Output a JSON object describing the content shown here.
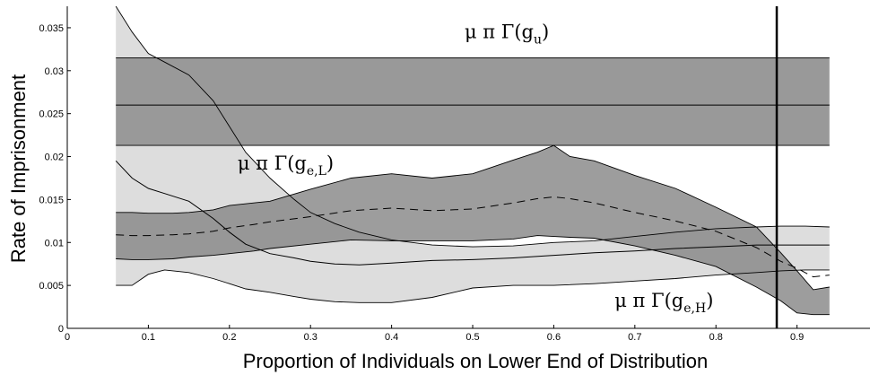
{
  "chart_data": {
    "type": "area",
    "xlabel": "Proportion of Individuals on Lower End of Distribution",
    "ylabel": "Rate of Imprisonment",
    "xlim": [
      0,
      0.99
    ],
    "ylim": [
      0,
      0.0375
    ],
    "x_ticks": [
      "0",
      "0.1",
      "0.2",
      "0.3",
      "0.4",
      "0.5",
      "0.6",
      "0.7",
      "0.8",
      "0.9"
    ],
    "x_tick_values": [
      0,
      0.1,
      0.2,
      0.3,
      0.4,
      0.5,
      0.6,
      0.7,
      0.8,
      0.9
    ],
    "y_ticks": [
      "0",
      "0.005",
      "0.01",
      "0.015",
      "0.02",
      "0.025",
      "0.03",
      "0.035"
    ],
    "y_tick_values": [
      0,
      0.005,
      0.01,
      0.015,
      0.02,
      0.025,
      0.03,
      0.035
    ],
    "grid": false,
    "annotations": [
      {
        "name": "g_u",
        "main": "μ π Γ(g",
        "sub": "u",
        "close": ")",
        "x": 0.49,
        "y": 0.0338
      },
      {
        "name": "g_eL",
        "main": "μ π Γ(g",
        "sub": "e,L",
        "close": ")",
        "x": 0.21,
        "y": 0.0185
      },
      {
        "name": "g_eH",
        "main": "μ π Γ(g",
        "sub": "e,H",
        "close": ")",
        "x": 0.675,
        "y": 0.0025
      }
    ],
    "vertical_line": {
      "x": 0.875
    },
    "series": [
      {
        "name": "g_u",
        "x": [
          0.06,
          0.94
        ],
        "lower": [
          0.0213,
          0.0213
        ],
        "center": [
          0.026,
          0.026
        ],
        "upper": [
          0.0315,
          0.0315
        ],
        "band_color": "#999999"
      },
      {
        "name": "g_eL",
        "x": [
          0.06,
          0.08,
          0.1,
          0.12,
          0.15,
          0.18,
          0.2,
          0.22,
          0.25,
          0.28,
          0.3,
          0.33,
          0.36,
          0.4,
          0.45,
          0.5,
          0.55,
          0.6,
          0.65,
          0.7,
          0.75,
          0.8,
          0.85,
          0.88,
          0.91,
          0.94
        ],
        "upper": [
          0.0375,
          0.0345,
          0.032,
          0.031,
          0.0295,
          0.0265,
          0.0235,
          0.0205,
          0.0175,
          0.015,
          0.0135,
          0.0122,
          0.0112,
          0.0103,
          0.0097,
          0.0095,
          0.0096,
          0.01,
          0.0102,
          0.0107,
          0.0112,
          0.0116,
          0.0118,
          0.0119,
          0.0119,
          0.0118
        ],
        "center": [
          0.0195,
          0.0175,
          0.0163,
          0.0157,
          0.0148,
          0.0128,
          0.0112,
          0.0098,
          0.0087,
          0.0082,
          0.0078,
          0.0075,
          0.0074,
          0.0076,
          0.0079,
          0.008,
          0.0082,
          0.0085,
          0.0088,
          0.009,
          0.0093,
          0.0095,
          0.0097,
          0.0097,
          0.0097,
          0.0097
        ],
        "lower": [
          0.005,
          0.005,
          0.0063,
          0.0068,
          0.0065,
          0.0058,
          0.0052,
          0.0046,
          0.0042,
          0.0037,
          0.0034,
          0.0031,
          0.003,
          0.003,
          0.0036,
          0.0047,
          0.005,
          0.005,
          0.0052,
          0.0055,
          0.0058,
          0.0062,
          0.0065,
          0.0067,
          0.0068,
          0.0068
        ],
        "band_color": "#dddddd"
      },
      {
        "name": "g_eH",
        "x": [
          0.06,
          0.08,
          0.1,
          0.13,
          0.15,
          0.18,
          0.2,
          0.23,
          0.25,
          0.3,
          0.35,
          0.4,
          0.45,
          0.5,
          0.55,
          0.58,
          0.6,
          0.62,
          0.65,
          0.7,
          0.75,
          0.8,
          0.85,
          0.88,
          0.9,
          0.92,
          0.94
        ],
        "upper": [
          0.0135,
          0.0135,
          0.0134,
          0.0134,
          0.0135,
          0.0138,
          0.0143,
          0.0146,
          0.0148,
          0.0162,
          0.0175,
          0.018,
          0.0175,
          0.018,
          0.0196,
          0.0205,
          0.0213,
          0.02,
          0.0195,
          0.0178,
          0.0163,
          0.0141,
          0.0118,
          0.0088,
          0.0067,
          0.0045,
          0.0048
        ],
        "center": [
          0.0109,
          0.0108,
          0.0108,
          0.0109,
          0.011,
          0.0113,
          0.0117,
          0.0121,
          0.0124,
          0.013,
          0.0137,
          0.014,
          0.0137,
          0.0139,
          0.0146,
          0.0151,
          0.0153,
          0.0151,
          0.0146,
          0.0135,
          0.0125,
          0.0113,
          0.0094,
          0.0078,
          0.007,
          0.006,
          0.0062
        ],
        "lower": [
          0.0081,
          0.008,
          0.008,
          0.0081,
          0.0083,
          0.0085,
          0.0087,
          0.009,
          0.0093,
          0.0098,
          0.0103,
          0.0102,
          0.0102,
          0.0102,
          0.0104,
          0.0108,
          0.0107,
          0.0106,
          0.0105,
          0.0096,
          0.0085,
          0.0072,
          0.0048,
          0.0032,
          0.0018,
          0.0016,
          0.0016
        ],
        "band_color": "#888888"
      }
    ]
  }
}
